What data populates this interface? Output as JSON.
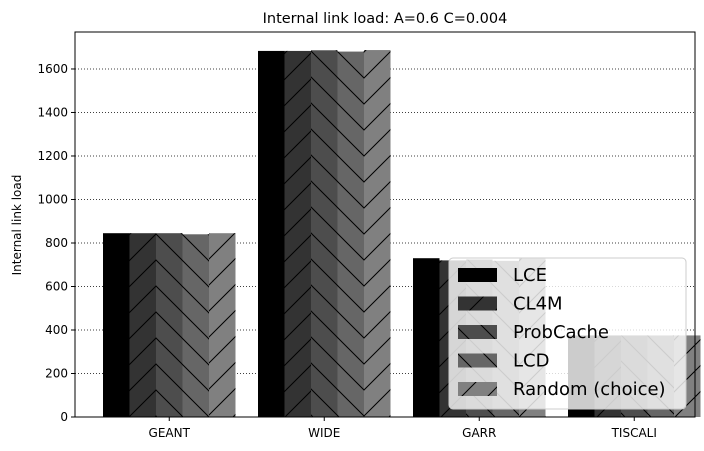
{
  "chart_data": {
    "type": "bar",
    "title": "Internal link load: A=0.6 C=0.004",
    "xlabel": "",
    "ylabel": "Internal link load",
    "categories": [
      "GEANT",
      "WIDE",
      "GARR",
      "TISCALI"
    ],
    "ylim": [
      0,
      1770
    ],
    "yticks": [
      0,
      200,
      400,
      600,
      800,
      1000,
      1200,
      1400,
      1600
    ],
    "grid": "horizontal-dotted",
    "legend_position": "lower-right",
    "series": [
      {
        "name": "LCE",
        "values": [
          845,
          1683,
          730,
          375
        ],
        "color": "#000000",
        "hatch": "none"
      },
      {
        "name": "CL4M",
        "values": [
          845,
          1683,
          720,
          375
        ],
        "color": "#333333",
        "hatch": "forward"
      },
      {
        "name": "ProbCache",
        "values": [
          845,
          1686,
          724,
          375
        ],
        "color": "#4d4d4d",
        "hatch": "back"
      },
      {
        "name": "LCD",
        "values": [
          840,
          1680,
          718,
          375
        ],
        "color": "#666666",
        "hatch": "back"
      },
      {
        "name": "Random (choice)",
        "values": [
          845,
          1687,
          728,
          375
        ],
        "color": "#808080",
        "hatch": "forward"
      }
    ]
  }
}
